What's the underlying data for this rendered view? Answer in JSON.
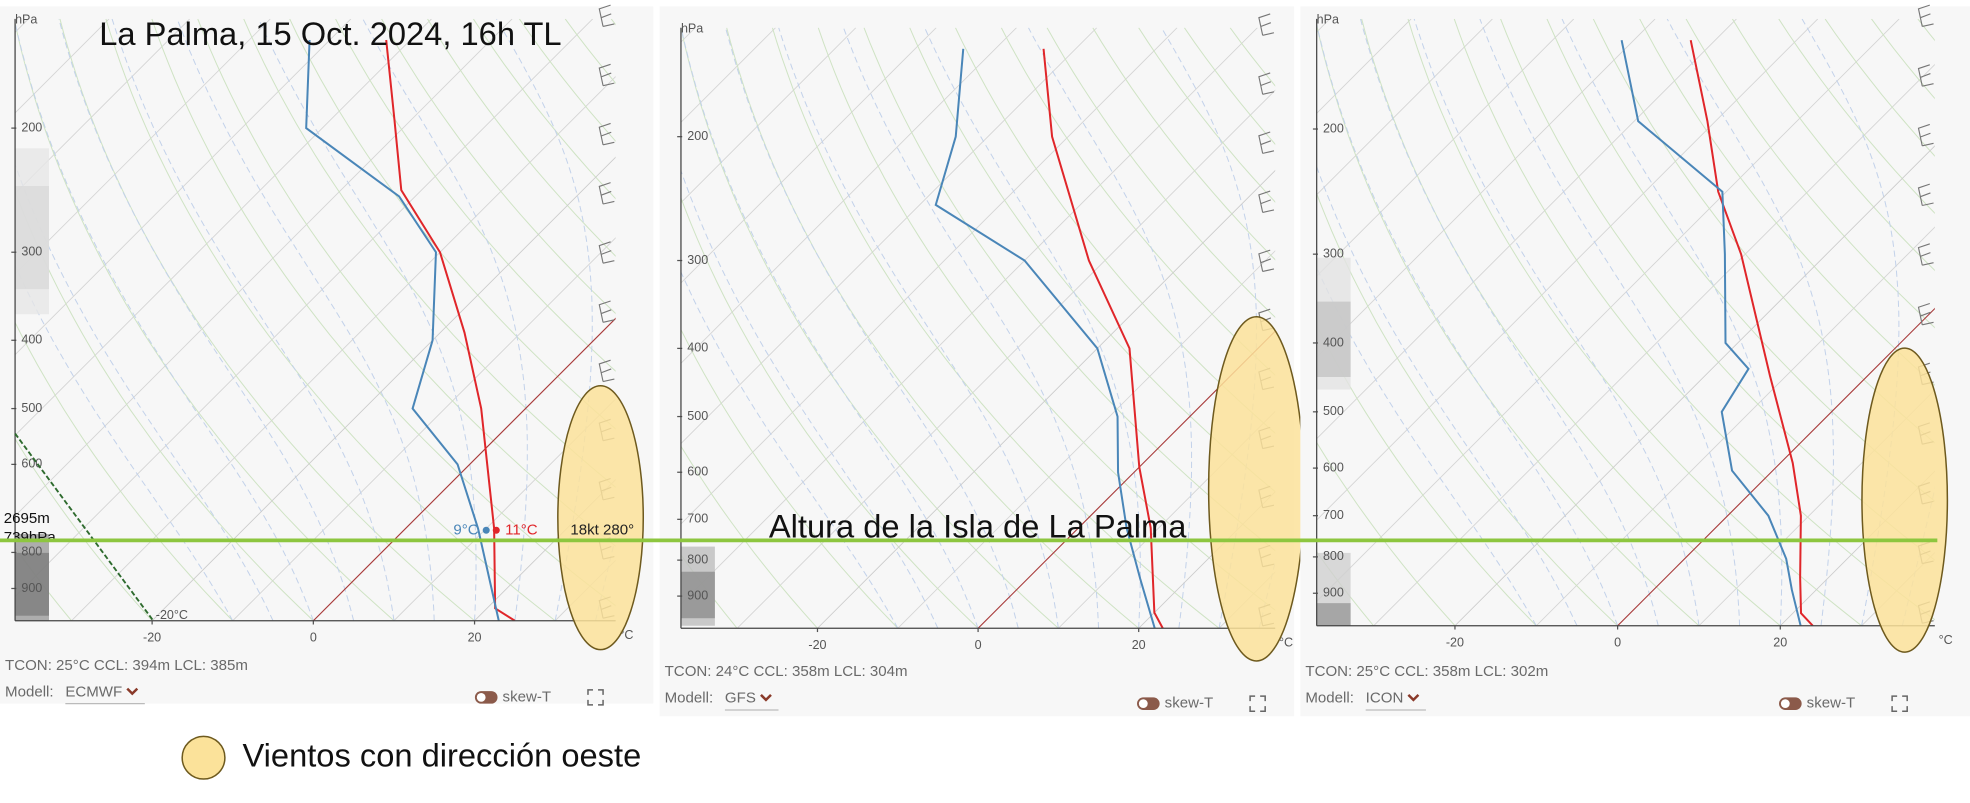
{
  "title": "La Palma, 15 Oct. 2024, 16h TL",
  "annotation": "Altura de la Isla de La Palma",
  "legend": "Vientos con dirección oeste",
  "chart_data": [
    {
      "type": "skewt",
      "model_label": "Modell:",
      "model": "ECMWF",
      "toggle": "skew-T",
      "footer": "TCON: 25°C CCL: 394m LCL: 385m",
      "y_unit": "hPa",
      "x_unit": "°C",
      "ylim": [
        1000,
        140
      ],
      "yticks": [
        200,
        300,
        400,
        500,
        600,
        800,
        900
      ],
      "xlim": [
        -37,
        37.5
      ],
      "xticks": [
        -20,
        0,
        20
      ],
      "series": [
        {
          "color": "#e0262a",
          "pressure": [
            1000,
            960,
            740,
            500,
            390,
            300,
            245,
            195,
            150
          ],
          "values": [
            25,
            21,
            11,
            -5.5,
            -17,
            -30,
            -42.5,
            -52,
            -63
          ]
        },
        {
          "color": "#4a86b8",
          "pressure": [
            1000,
            740,
            600,
            500,
            400,
            300,
            250,
            200,
            150
          ],
          "values": [
            23,
            9,
            -1.5,
            -14,
            -20,
            -30.5,
            -42,
            -62,
            -72.5
          ]
        }
      ],
      "hover": {
        "height": "2695m",
        "pressure": "739hPa",
        "dewpoint": "9°C",
        "temperature": "11°C",
        "wind": "18kt 280°",
        "isotherm": "-20°C"
      }
    },
    {
      "type": "skewt",
      "model_label": "Modell:",
      "model": "GFS",
      "toggle": "skew-T",
      "footer": "TCON: 24°C CCL: 358m LCL: 304m",
      "y_unit": "hPa",
      "x_unit": "°C",
      "ylim": [
        1000,
        140
      ],
      "yticks": [
        200,
        300,
        400,
        500,
        600,
        700,
        800,
        900
      ],
      "xlim": [
        -37,
        37
      ],
      "xticks": [
        -20,
        0,
        20
      ],
      "series": [
        {
          "color": "#e0262a",
          "pressure": [
            1000,
            950,
            720,
            590,
            400,
            300,
            200,
            150
          ],
          "values": [
            23,
            20,
            9,
            0,
            -16,
            -32,
            -52,
            -64
          ]
        },
        {
          "color": "#4a86b8",
          "pressure": [
            1000,
            850,
            720,
            600,
            500,
            400,
            300,
            250,
            200,
            150
          ],
          "values": [
            22,
            14,
            6,
            -2,
            -9,
            -20,
            -40,
            -58,
            -64,
            -74
          ]
        }
      ]
    },
    {
      "type": "skewt",
      "model_label": "Modell:",
      "model": "ICON",
      "toggle": "skew-T",
      "footer": "TCON: 25°C CCL: 358m LCL: 302m",
      "y_unit": "hPa",
      "x_unit": "°C",
      "ylim": [
        1000,
        140
      ],
      "yticks": [
        200,
        300,
        400,
        500,
        600,
        700,
        800,
        900
      ],
      "xlim": [
        -37,
        39
      ],
      "xticks": [
        -20,
        0,
        20
      ],
      "series": [
        {
          "color": "#e0262a",
          "pressure": [
            1000,
            960,
            855,
            700,
            590,
            445,
            300,
            245,
            195,
            150
          ],
          "values": [
            24,
            21,
            16.5,
            9,
            1.5,
            -12,
            -30.5,
            -41,
            -51,
            -63
          ]
        },
        {
          "color": "#4a86b8",
          "pressure": [
            1000,
            890,
            805,
            700,
            605,
            500,
            435,
            400,
            300,
            245,
            195,
            150
          ],
          "values": [
            22.5,
            17,
            12.5,
            5,
            -5,
            -13.5,
            -15.5,
            -21.5,
            -32.5,
            -40.5,
            -59.5,
            -71.5
          ]
        }
      ]
    }
  ]
}
